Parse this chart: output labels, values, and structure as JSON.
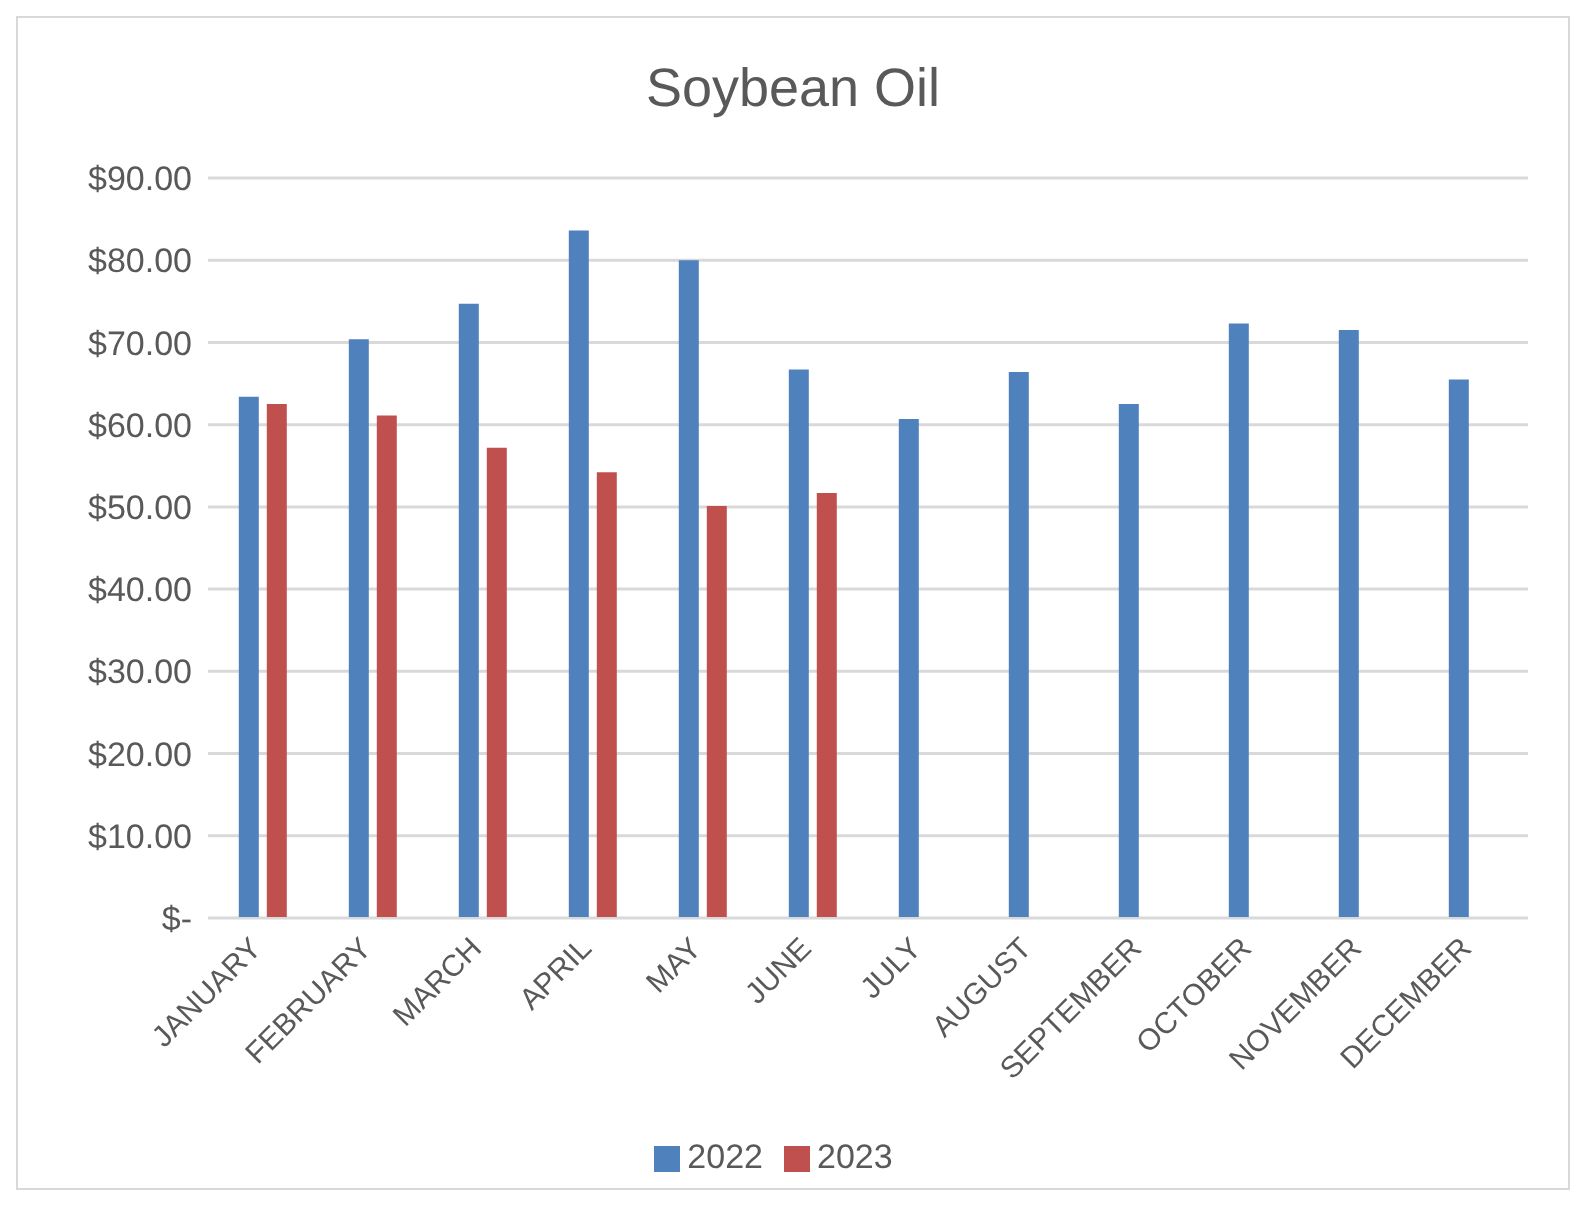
{
  "chart_data": {
    "type": "bar",
    "title": "Soybean Oil",
    "categories": [
      "JANUARY",
      "FEBRUARY",
      "MARCH",
      "APRIL",
      "MAY",
      "JUNE",
      "JULY",
      "AUGUST",
      "SEPTEMBER",
      "OCTOBER",
      "NOVEMBER",
      "DECEMBER"
    ],
    "series": [
      {
        "name": "2022",
        "color": "#4f81bd",
        "values": [
          63.4,
          70.4,
          74.7,
          83.6,
          80.0,
          66.7,
          60.7,
          66.4,
          62.5,
          72.3,
          71.5,
          65.5
        ]
      },
      {
        "name": "2023",
        "color": "#c0504d",
        "values": [
          62.5,
          61.1,
          57.2,
          54.2,
          50.1,
          51.7,
          null,
          null,
          null,
          null,
          null,
          null
        ]
      }
    ],
    "ylim": [
      0,
      90
    ],
    "yticks": [
      {
        "value": 0,
        "label": "$-"
      },
      {
        "value": 10,
        "label": "$10.00"
      },
      {
        "value": 20,
        "label": "$20.00"
      },
      {
        "value": 30,
        "label": "$30.00"
      },
      {
        "value": 40,
        "label": "$40.00"
      },
      {
        "value": 50,
        "label": "$50.00"
      },
      {
        "value": 60,
        "label": "$60.00"
      },
      {
        "value": 70,
        "label": "$70.00"
      },
      {
        "value": 80,
        "label": "$80.00"
      },
      {
        "value": 90,
        "label": "$90.00"
      }
    ],
    "grid": "y",
    "legend": "bottom"
  }
}
